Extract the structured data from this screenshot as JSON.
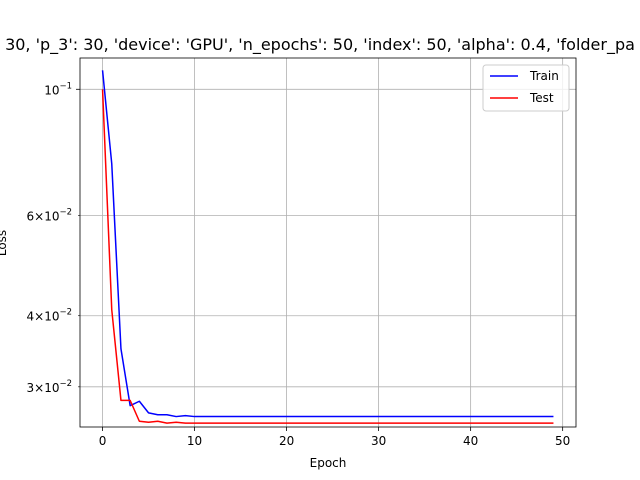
{
  "chart_data": {
    "type": "line",
    "title": "30, 'p_3': 30, 'device': 'GPU', 'n_epochs': 50, 'index': 50, 'alpha': 0.4, 'folder_pa",
    "xlabel": "Epoch",
    "ylabel": "Loss",
    "yscale": "log",
    "xlim": [
      -2.45,
      51.45
    ],
    "ylim": [
      0.0255,
      0.1135
    ],
    "xticks": [
      0,
      10,
      20,
      30,
      40,
      50
    ],
    "xtick_labels": [
      "0",
      "10",
      "20",
      "30",
      "40",
      "50"
    ],
    "yticks_major": [
      0.1
    ],
    "yticks_minor": [
      0.03,
      0.04,
      0.06
    ],
    "ytick_labels": [
      {
        "value": 0.1,
        "mantissa": "",
        "exponent": "−1"
      },
      {
        "value": 0.06,
        "mantissa": "6",
        "exponent": "−2"
      },
      {
        "value": 0.04,
        "mantissa": "4",
        "exponent": "−2"
      },
      {
        "value": 0.03,
        "mantissa": "3",
        "exponent": "−2"
      }
    ],
    "grid": true,
    "legend_position": "top-right",
    "series": [
      {
        "name": "Train",
        "color": "#0000ff",
        "x": [
          0,
          1,
          2,
          3,
          4,
          5,
          6,
          7,
          8,
          9,
          10,
          11,
          12,
          13,
          14,
          15,
          16,
          17,
          18,
          19,
          20,
          21,
          22,
          23,
          24,
          25,
          26,
          27,
          28,
          29,
          30,
          31,
          32,
          33,
          34,
          35,
          36,
          37,
          38,
          39,
          40,
          41,
          42,
          43,
          44,
          45,
          46,
          47,
          48,
          49
        ],
        "values": [
          0.108,
          0.074,
          0.035,
          0.0278,
          0.0283,
          0.027,
          0.0268,
          0.0268,
          0.0266,
          0.0267,
          0.0266,
          0.0266,
          0.0266,
          0.0266,
          0.0266,
          0.0266,
          0.0266,
          0.0266,
          0.0266,
          0.0266,
          0.0266,
          0.0266,
          0.0266,
          0.0266,
          0.0266,
          0.0266,
          0.0266,
          0.0266,
          0.0266,
          0.0266,
          0.0266,
          0.0266,
          0.0266,
          0.0266,
          0.0266,
          0.0266,
          0.0266,
          0.0266,
          0.0266,
          0.0266,
          0.0266,
          0.0266,
          0.0266,
          0.0266,
          0.0266,
          0.0266,
          0.0266,
          0.0266,
          0.0266,
          0.0266
        ]
      },
      {
        "name": "Test",
        "color": "#ff0000",
        "x": [
          0,
          1,
          2,
          3,
          4,
          5,
          6,
          7,
          8,
          9,
          10,
          11,
          12,
          13,
          14,
          15,
          16,
          17,
          18,
          19,
          20,
          21,
          22,
          23,
          24,
          25,
          26,
          27,
          28,
          29,
          30,
          31,
          32,
          33,
          34,
          35,
          36,
          37,
          38,
          39,
          40,
          41,
          42,
          43,
          44,
          45,
          46,
          47,
          48,
          49
        ],
        "values": [
          0.1,
          0.041,
          0.0284,
          0.0284,
          0.0261,
          0.026,
          0.0261,
          0.0259,
          0.026,
          0.0259,
          0.0259,
          0.0259,
          0.0259,
          0.0259,
          0.0259,
          0.0259,
          0.0259,
          0.0259,
          0.0259,
          0.0259,
          0.0259,
          0.0259,
          0.0259,
          0.0259,
          0.0259,
          0.0259,
          0.0259,
          0.0259,
          0.0259,
          0.0259,
          0.0259,
          0.0259,
          0.0259,
          0.0259,
          0.0259,
          0.0259,
          0.0259,
          0.0259,
          0.0259,
          0.0259,
          0.0259,
          0.0259,
          0.0259,
          0.0259,
          0.0259,
          0.0259,
          0.0259,
          0.0259,
          0.0259,
          0.0259
        ]
      }
    ]
  }
}
